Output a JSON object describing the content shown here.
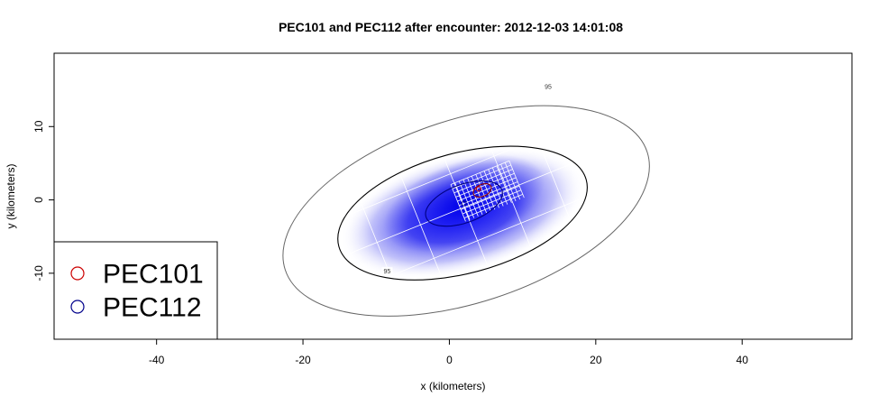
{
  "chart_data": {
    "type": "contour",
    "title": "PEC101 and PEC112 after encounter: 2012-12-03 14:01:08",
    "xlabel": "x (kilometers)",
    "ylabel": "y (kilometers)",
    "xlim": [
      -54,
      55
    ],
    "ylim": [
      -19,
      20
    ],
    "x_ticks": [
      -40,
      -20,
      0,
      20,
      40
    ],
    "y_ticks": [
      -10,
      0,
      10
    ],
    "x_tick_labels": [
      "-40",
      "-20",
      "0",
      "20",
      "40"
    ],
    "y_tick_labels": [
      "-10",
      "0",
      "10"
    ],
    "grid": false,
    "legend_position": "bottom-left",
    "series": [
      {
        "name": "PEC101",
        "color": "#cc0000",
        "marker": "open-circle",
        "center": [
          4.0,
          1.5
        ]
      },
      {
        "name": "PEC112",
        "color": "#00008b",
        "marker": "open-circle",
        "center": [
          2.0,
          -0.5
        ]
      }
    ],
    "contours": [
      {
        "label": "95",
        "color": "#666666",
        "center": [
          2.3,
          -1.5
        ],
        "semi_axes": [
          26,
          12.5
        ],
        "angle_deg": 18
      },
      {
        "label": "95",
        "color": "#000000",
        "center": [
          1.8,
          -1.8
        ],
        "semi_axes": [
          17.5,
          8.2
        ],
        "angle_deg": 15
      },
      {
        "label": "",
        "color": "#000080",
        "center": [
          2.0,
          -0.5
        ],
        "semi_axes": [
          5.5,
          2.6
        ],
        "angle_deg": 20
      },
      {
        "label": "",
        "color": "#8b0000",
        "center": [
          4.5,
          1.3
        ],
        "semi_axes": [
          1.3,
          0.8
        ],
        "angle_deg": 25
      }
    ]
  }
}
